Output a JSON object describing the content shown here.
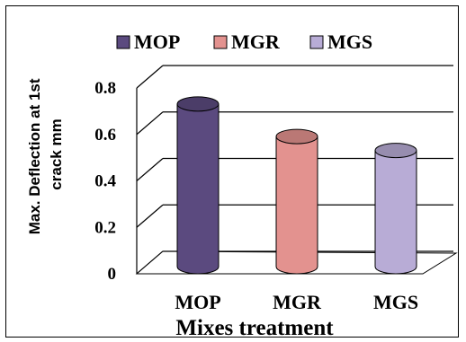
{
  "chart_data": {
    "type": "bar",
    "categories": [
      "MOP",
      "MGR",
      "MGS"
    ],
    "values": [
      0.7,
      0.56,
      0.5
    ],
    "series": [
      {
        "name": "MOP",
        "color": "#5b4a7f"
      },
      {
        "name": "MGR",
        "color": "#e3928f"
      },
      {
        "name": "MGS",
        "color": "#b8acd6"
      }
    ],
    "title": "",
    "xlabel": "Mixes treatment",
    "ylabel": "Max. Deflection at 1st crack mm",
    "ylabel_lines": [
      "Max. Deflection at 1st",
      "crack mm"
    ],
    "ylim": [
      0,
      0.8
    ],
    "yticks": [
      "0",
      "0.2",
      "0.4",
      "0.6",
      "0.8"
    ],
    "grid": true,
    "legend_position": "top"
  }
}
